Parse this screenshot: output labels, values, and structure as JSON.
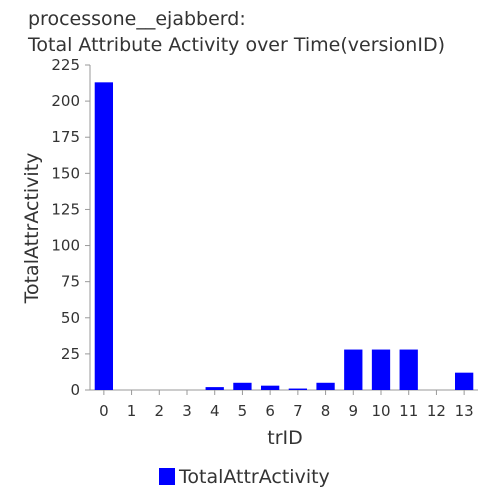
{
  "chart_data": {
    "type": "bar",
    "title_line1": "processone__ejabberd:",
    "title_line2": "Total Attribute Activity over Time(versionID)",
    "xlabel": "trID",
    "ylabel": "TotalAttrActivity",
    "categories": [
      "0",
      "1",
      "2",
      "3",
      "4",
      "5",
      "6",
      "7",
      "8",
      "9",
      "10",
      "11",
      "12",
      "13"
    ],
    "values": [
      213,
      0,
      0,
      0,
      2,
      5,
      3,
      1,
      5,
      28,
      28,
      28,
      0,
      12
    ],
    "ylim": [
      0,
      225
    ],
    "yticks": [
      0,
      25,
      50,
      75,
      100,
      125,
      150,
      175,
      200,
      225
    ],
    "grid": false,
    "legend": {
      "position": "bottom",
      "entries": [
        {
          "name": "TotalAttrActivity",
          "color": "#0000ff"
        }
      ]
    },
    "colors": {
      "bar": "#0000ff",
      "axis": "#999999",
      "text": "#333333"
    }
  }
}
